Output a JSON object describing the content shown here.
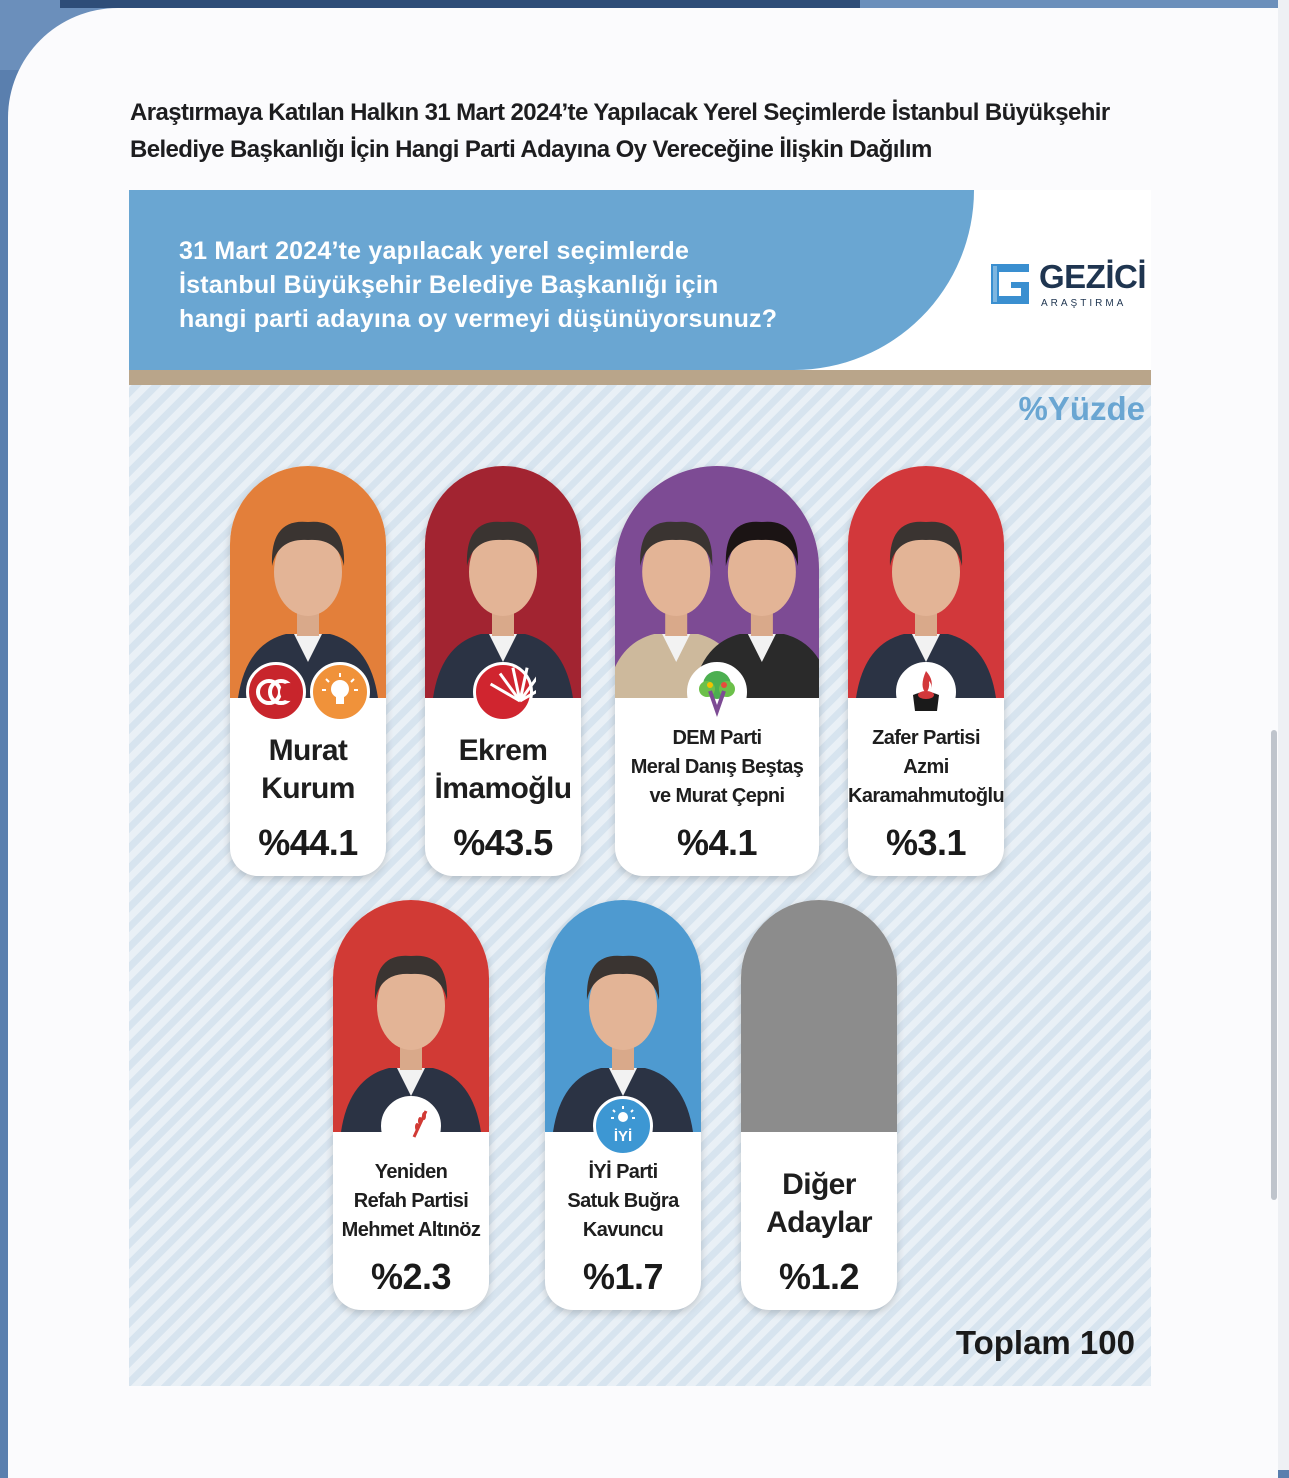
{
  "document": {
    "title_line1": "Araştırmaya Katılan Halkın 31 Mart 2024’te Yapılacak Yerel Seçimlerde İstanbul Büyükşehir",
    "title_line2": "Belediye Başkanlığı İçin Hangi Parti Adayına Oy Vereceğine İlişkin Dağılım"
  },
  "chart_data": {
    "type": "bar",
    "question_line1": "31 Mart 2024’te yapılacak yerel seçimlerde",
    "question_line2": "İstanbul Büyükşehir Belediye Başkanlığı için",
    "question_line3": "hangi parti adayına oy vermeyi düşünüyorsunuz?",
    "unit_label": "%Yüzde",
    "total_label": "Toplam 100",
    "candidates": [
      {
        "label_lines": [
          "Murat",
          "Kurum"
        ],
        "value": 44.1,
        "value_label": "%44.1",
        "color": "#e37f3a",
        "emblems": [
          "mhp-emblem-icon",
          "akp-bulb-icon"
        ]
      },
      {
        "label_lines": [
          "Ekrem",
          "İmamoğlu"
        ],
        "value": 43.5,
        "value_label": "%43.5",
        "color": "#a22431",
        "emblems": [
          "chp-six-arrows-icon"
        ]
      },
      {
        "label_lines": [
          "DEM Parti",
          "Meral Danış Beştaş",
          "ve Murat Çepni"
        ],
        "value": 4.1,
        "value_label": "%4.1",
        "color": "#7d4b94",
        "emblems": [
          "dem-tree-icon"
        ]
      },
      {
        "label_lines": [
          "Zafer Partisi",
          "Azmi",
          "Karamahmutoğlu"
        ],
        "value": 3.1,
        "value_label": "%3.1",
        "color": "#d2383b",
        "emblems": [
          "zafer-torch-icon"
        ]
      },
      {
        "label_lines": [
          "Yeniden",
          "Refah Partisi",
          "Mehmet Altınöz"
        ],
        "value": 2.3,
        "value_label": "%2.3",
        "color": "#d13a35",
        "emblems": [
          "yrp-crescent-icon"
        ]
      },
      {
        "label_lines": [
          "İYİ Parti",
          "Satuk Buğra",
          "Kavuncu"
        ],
        "value": 1.7,
        "value_label": "%1.7",
        "color": "#4e9ad0",
        "emblems": [
          "iyi-sun-icon"
        ]
      },
      {
        "label_lines": [
          "Diğer",
          "Adaylar"
        ],
        "value": 1.2,
        "value_label": "%1.2",
        "color": "#8c8c8c",
        "emblems": []
      }
    ]
  },
  "logo": {
    "name": "GEZİCİ",
    "subtitle": "ARAŞTIRMA",
    "color": "#1f3550",
    "accent": "#3a8fd0"
  }
}
